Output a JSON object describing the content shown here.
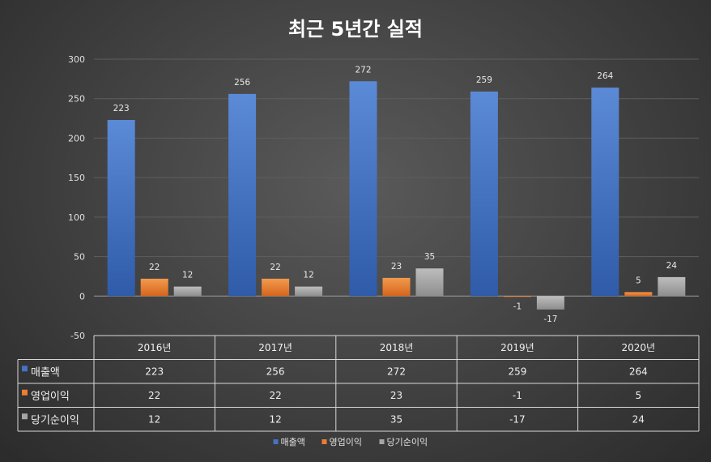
{
  "chart_data": {
    "type": "bar",
    "title": "최근 5년간 실적",
    "categories": [
      "2016년",
      "2017년",
      "2018년",
      "2019년",
      "2020년"
    ],
    "series": [
      {
        "name": "매출액",
        "values": [
          223,
          256,
          272,
          259,
          264
        ],
        "color": "#4472c4"
      },
      {
        "name": "영업이익",
        "values": [
          22,
          22,
          23,
          -1,
          5
        ],
        "color": "#ed7d31"
      },
      {
        "name": "당기순이익",
        "values": [
          12,
          12,
          35,
          -17,
          24
        ],
        "color": "#a5a5a5"
      }
    ],
    "ylim": [
      -50,
      300
    ],
    "yticks": [
      -50,
      0,
      50,
      100,
      150,
      200,
      250,
      300
    ],
    "ytick_labels": [
      "-50",
      "0",
      "50",
      "100",
      "150",
      "200",
      "250",
      "300"
    ],
    "grid": true,
    "legend": "bottom",
    "data_table": true
  }
}
